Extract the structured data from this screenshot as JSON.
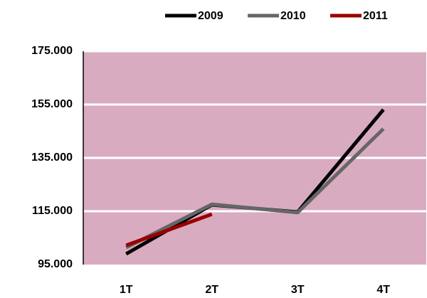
{
  "chart_data": {
    "type": "line",
    "categories": [
      "1T",
      "2T",
      "3T",
      "4T"
    ],
    "series": [
      {
        "name": "2009",
        "color": "#000000",
        "values": [
          99000,
          117400,
          114700,
          153100
        ]
      },
      {
        "name": "2010",
        "color": "#666666",
        "values": [
          101400,
          117600,
          114500,
          145900
        ]
      },
      {
        "name": "2011",
        "color": "#990000",
        "values": [
          102200,
          113900,
          null,
          null
        ]
      }
    ],
    "ylim": [
      95000,
      175000
    ],
    "yticks": [
      {
        "value": 95000,
        "label": "95.000"
      },
      {
        "value": 115000,
        "label": "115.000"
      },
      {
        "value": 135000,
        "label": "135.000"
      },
      {
        "value": 155000,
        "label": "155.000"
      },
      {
        "value": 175000,
        "label": "175.000"
      }
    ],
    "grid": true,
    "plot_background": "#d9abc0",
    "legend": "top"
  }
}
